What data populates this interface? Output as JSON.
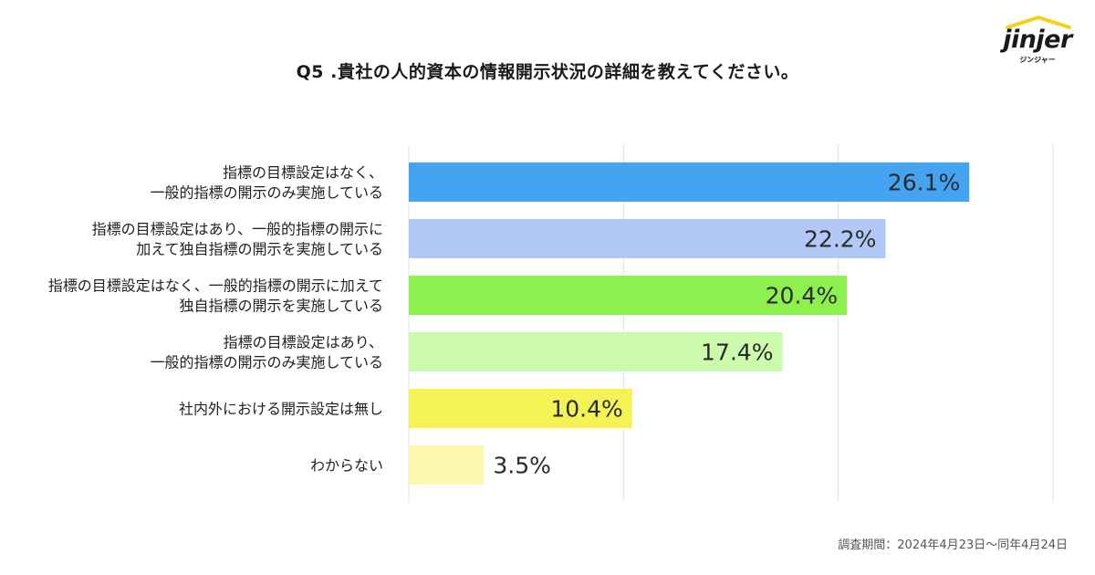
{
  "logo": {
    "word": "jinjer",
    "sub": "ジンジャー"
  },
  "footer": {
    "period": "調査期間：2024年4月23日〜同年4月24日"
  },
  "chart_data": {
    "type": "bar",
    "orientation": "horizontal",
    "title": "Q5 .貴社の人的資本の情報開示状況の詳細を教えてください。",
    "xlim": [
      0,
      30
    ],
    "grid": true,
    "categories": [
      [
        "指標の目標設定はなく、",
        "一般的指標の開示のみ実施している"
      ],
      [
        "指標の目標設定はあり、一般的指標の開示に",
        "加えて独自指標の開示を実施している"
      ],
      [
        "指標の目標設定はなく、一般的指標の開示に加えて",
        "独自指標の開示を実施している"
      ],
      [
        "指標の目標設定はあり、",
        "一般的指標の開示のみ実施している"
      ],
      [
        "社内外における開示設定は無し"
      ],
      [
        "わからない"
      ]
    ],
    "values": [
      26.1,
      22.2,
      20.4,
      17.4,
      10.4,
      3.5
    ],
    "value_labels": [
      "26.1%",
      "22.2%",
      "20.4%",
      "17.4%",
      "10.4%",
      "3.5%"
    ],
    "colors": [
      "#44a4f2",
      "#b2c9f8",
      "#8ef04e",
      "#cdfbad",
      "#f3f353",
      "#fbf7b0"
    ]
  }
}
